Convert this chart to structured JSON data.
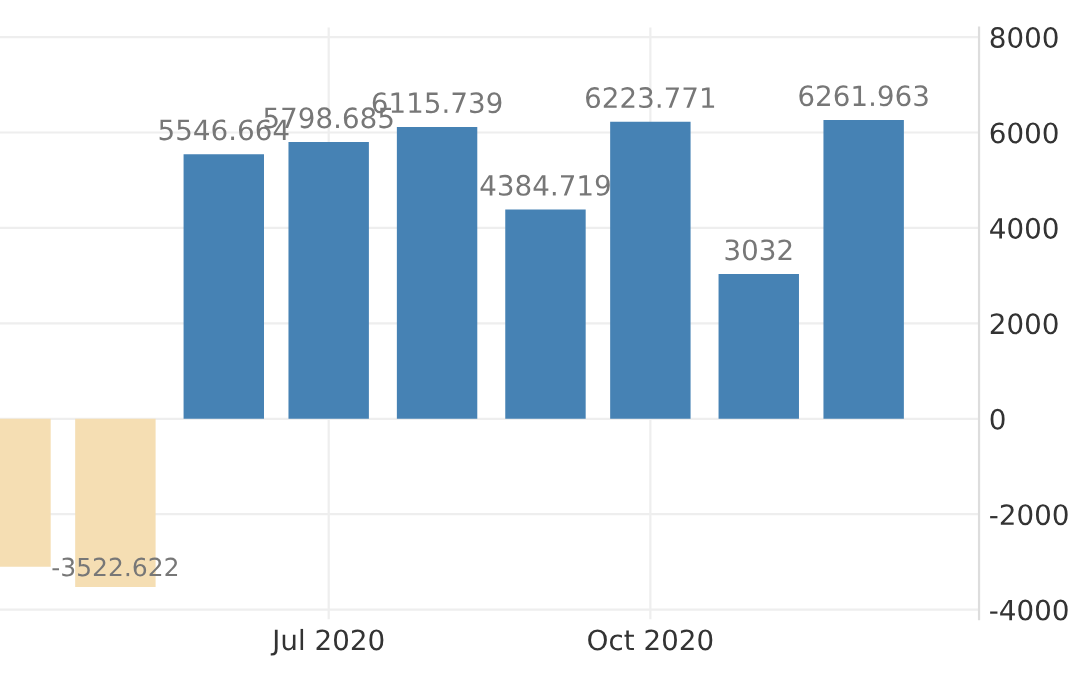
{
  "chart_data": {
    "type": "bar",
    "x": [
      "2020-04-15",
      "2020-05-15",
      "2020-06-15",
      "2020-07-15",
      "2020-08-15",
      "2020-09-15",
      "2020-10-15",
      "2020-11-15",
      "2020-12-15"
    ],
    "values": [
      -3100,
      -3522.622,
      5546.664,
      5798.685,
      6115.739,
      4384.719,
      6223.771,
      3032,
      6261.963
    ],
    "value_labels": [
      null,
      "-3522.622",
      "5546.664",
      "5798.685",
      "6115.739",
      "4384.719",
      "6223.771",
      "3032",
      "6261.963"
    ],
    "colors": [
      "#f5deb3",
      "#f5deb3",
      "#4682b4",
      "#4682b4",
      "#4682b4",
      "#4682b4",
      "#4682b4",
      "#4682b4",
      "#4682b4"
    ],
    "xlim": [
      "2020-04-12",
      "2021-01-17"
    ],
    "xticks": [
      {
        "value": "2020-07-15",
        "label": "Jul 2020"
      },
      {
        "value": "2020-10-15",
        "label": "Oct 2020"
      }
    ],
    "ylim": [
      -4200,
      8200
    ],
    "yticks": [
      -4000,
      -2000,
      0,
      2000,
      4000,
      6000,
      8000
    ],
    "grid": true
  }
}
